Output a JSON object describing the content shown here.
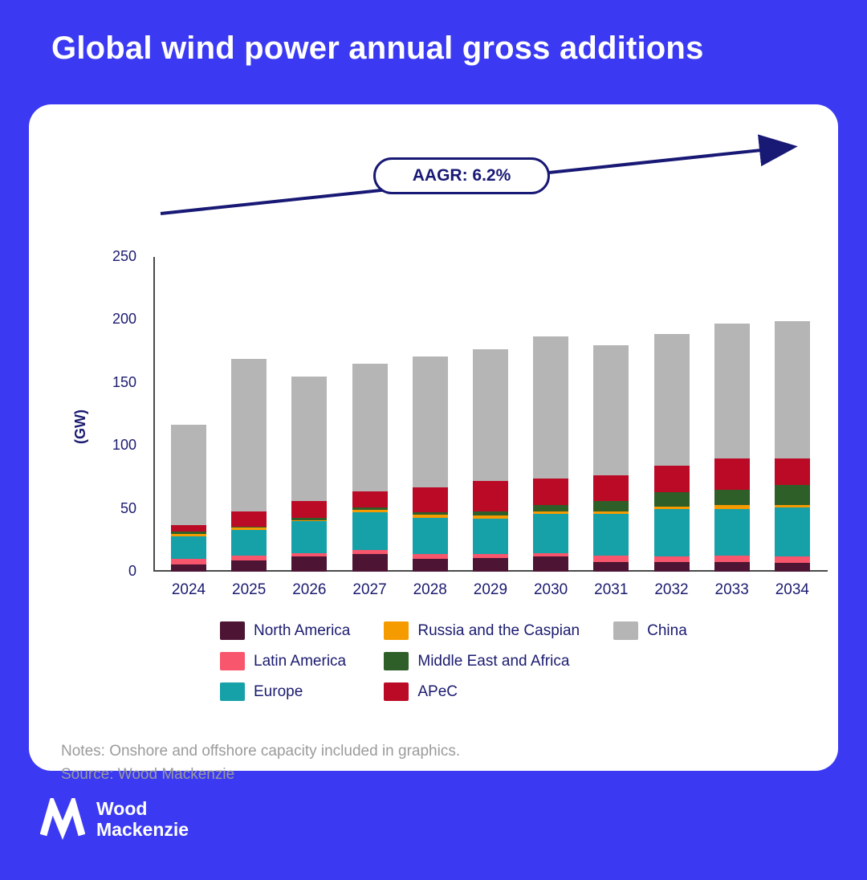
{
  "page_title": "Global wind power annual gross additions",
  "annotation": {
    "aagr_label": "AAGR: 6.2%"
  },
  "notes": "Notes: Onshore and offshore capacity included in graphics.",
  "source": "Source: Wood Mackenzie",
  "logo": {
    "line1": "Wood",
    "line2": "Mackenzie"
  },
  "colors": {
    "background": "#3b3af2",
    "navy": "#181875",
    "axis": "#4a4a4a",
    "notes_gray": "#9b9b9b"
  },
  "chart_data": {
    "type": "bar",
    "stacked": true,
    "title": "Global wind power annual gross additions",
    "xlabel": "",
    "ylabel": "(GW)",
    "ylim": [
      0,
      250
    ],
    "yticks": [
      0,
      50,
      100,
      150,
      200,
      250
    ],
    "grid": false,
    "legend_position": "bottom",
    "annotation": "AAGR: 6.2%",
    "categories": [
      "2024",
      "2025",
      "2026",
      "2027",
      "2028",
      "2029",
      "2030",
      "2031",
      "2032",
      "2033",
      "2034"
    ],
    "series": [
      {
        "name": "North America",
        "color": "#4d1533",
        "values": [
          6,
          9,
          12,
          14,
          10,
          11,
          12,
          8,
          8,
          8,
          7
        ]
      },
      {
        "name": "Latin America",
        "color": "#f8566d",
        "values": [
          4,
          4,
          3,
          3,
          4,
          3,
          3,
          5,
          4,
          5,
          5
        ]
      },
      {
        "name": "Europe",
        "color": "#16a0a8",
        "values": [
          18,
          20,
          25,
          30,
          29,
          28,
          31,
          33,
          38,
          37,
          39
        ]
      },
      {
        "name": "Russia and the Caspian",
        "color": "#f59b00",
        "values": [
          2,
          2,
          1,
          2,
          2,
          3,
          2,
          2,
          2,
          3,
          2
        ]
      },
      {
        "name": "Middle East and Africa",
        "color": "#2e5f28",
        "values": [
          2,
          1,
          2,
          2,
          2,
          3,
          5,
          8,
          11,
          12,
          16
        ]
      },
      {
        "name": "APeC",
        "color": "#bb0a26",
        "values": [
          5,
          12,
          13,
          13,
          20,
          24,
          21,
          21,
          21,
          25,
          21
        ]
      },
      {
        "name": "China",
        "color": "#b5b5b5",
        "values": [
          80,
          121,
          99,
          101,
          104,
          105,
          113,
          103,
          105,
          107,
          109
        ]
      }
    ],
    "totals": [
      117,
      169,
      155,
      165,
      171,
      177,
      187,
      180,
      189,
      197,
      199
    ],
    "legend_columns": [
      [
        0,
        1,
        2
      ],
      [
        3,
        4,
        5
      ],
      [
        6
      ]
    ]
  }
}
